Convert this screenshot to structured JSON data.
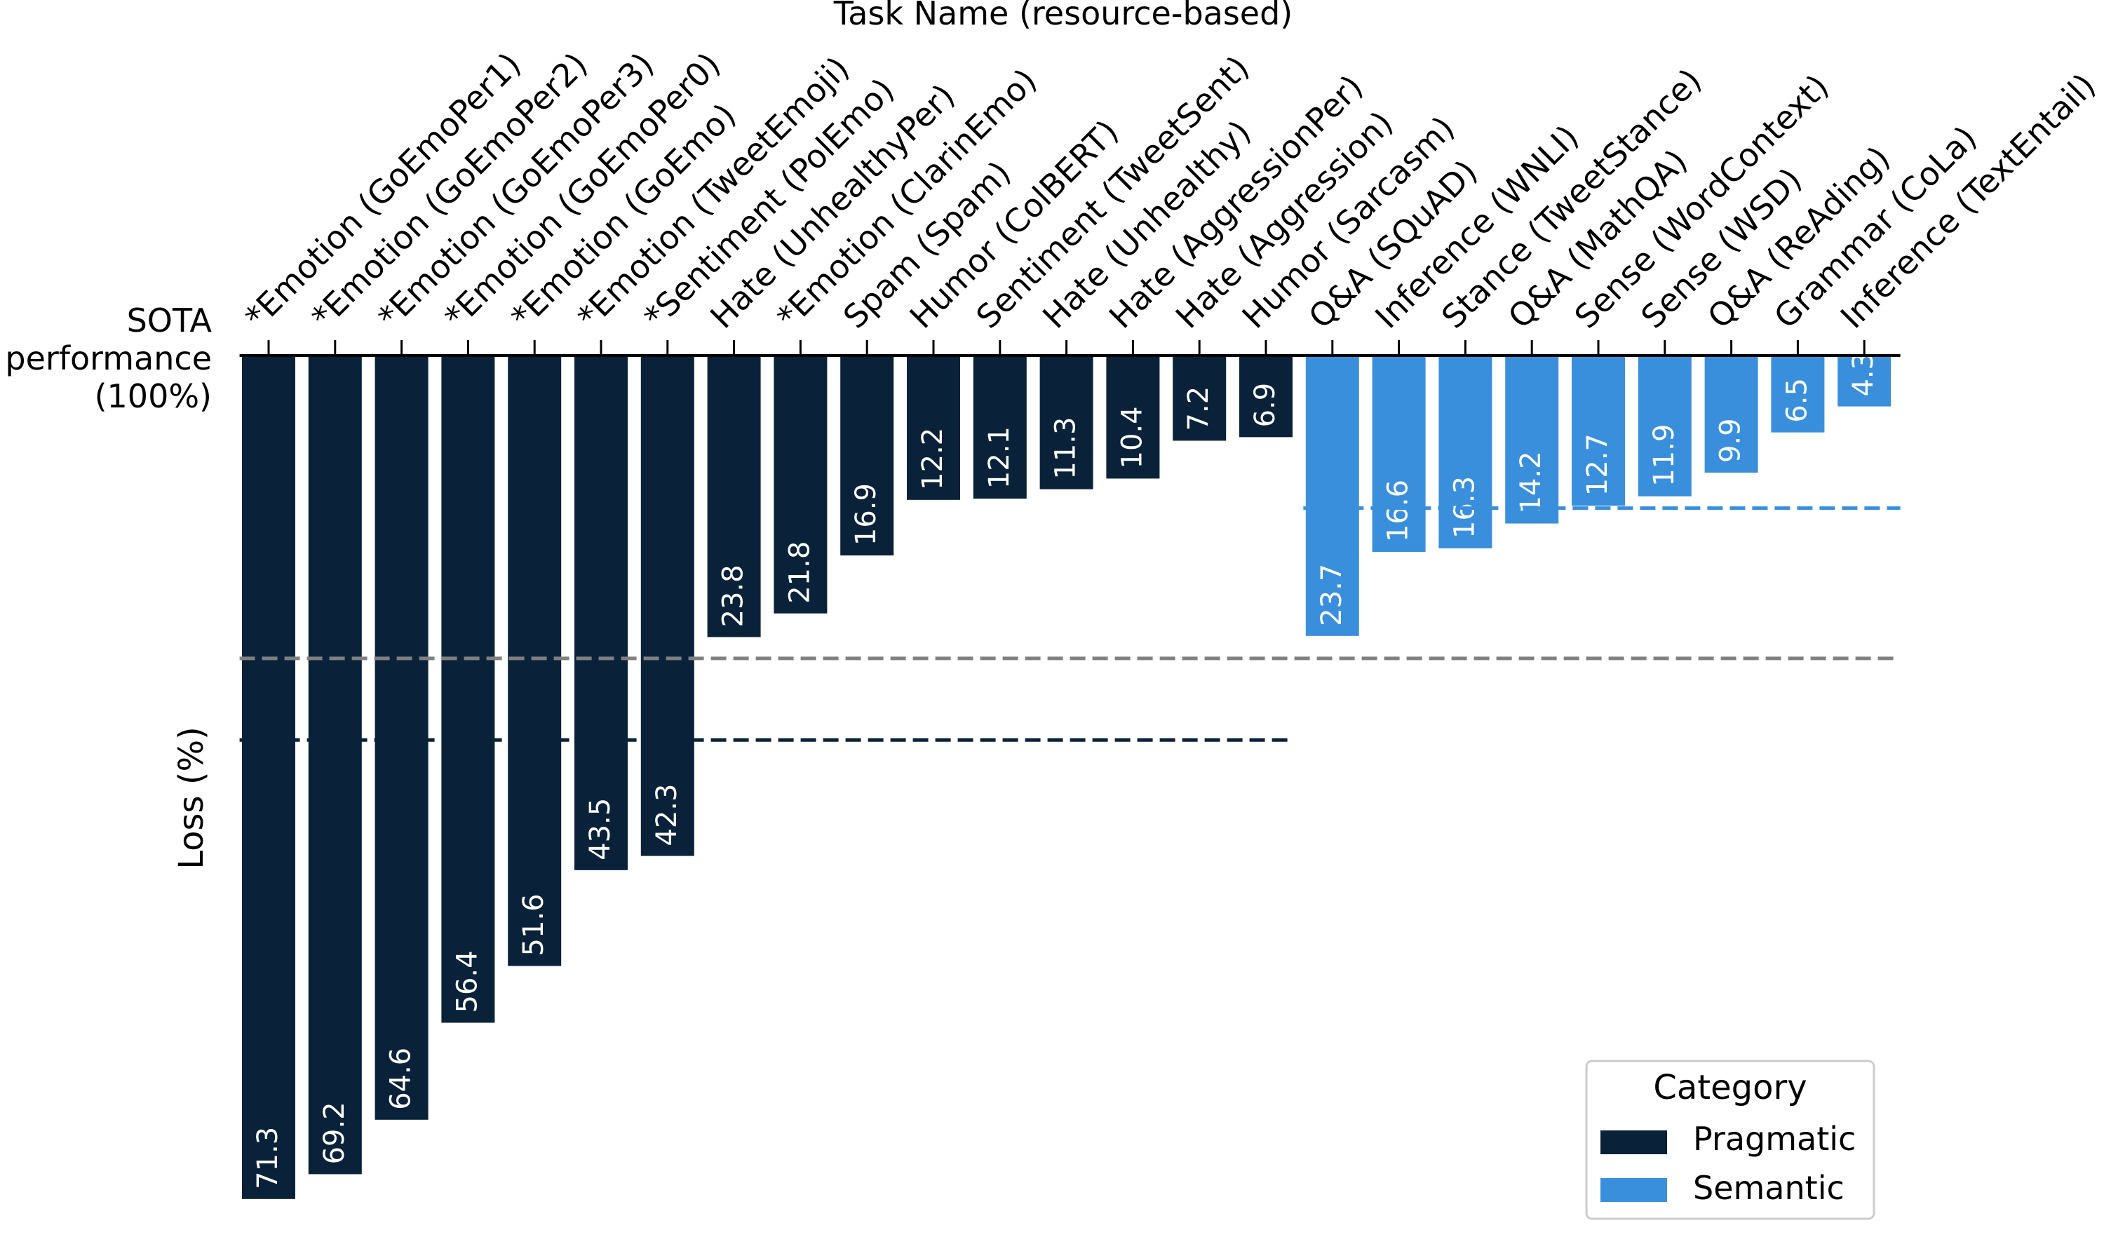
{
  "chart_data": {
    "type": "bar",
    "title": "Task Name (resource-based)",
    "ylabel": "Loss (%)",
    "baseline_label": [
      "SOTA",
      "performance",
      "(100%)"
    ],
    "ylim": [
      0,
      72
    ],
    "inverted": true,
    "categories": [
      "*Emotion (GoEmoPer1)",
      "*Emotion (GoEmoPer2)",
      "*Emotion (GoEmoPer3)",
      "*Emotion (GoEmoPer0)",
      "*Emotion (GoEmo)",
      "*Emotion (TweetEmoji)",
      "*Sentiment (PolEmo)",
      "Hate (UnhealthyPer)",
      "*Emotion (ClarinEmo)",
      "Spam (Spam)",
      "Humor (ColBERT)",
      "Sentiment (TweetSent)",
      "Hate (Unhealthy)",
      "Hate (AggressionPer)",
      "Hate (Aggression)",
      "Humor (Sarcasm)",
      "Q&A (SQuAD)",
      "Inference (WNLI)",
      "Stance (TweetStance)",
      "Q&A (MathQA)",
      "Sense (WordContext)",
      "Sense (WSD)",
      "Q&A (ReAding)",
      "Grammar (CoLa)",
      "Inference (TextEntail)"
    ],
    "values": [
      71.3,
      69.2,
      64.6,
      56.4,
      51.6,
      43.5,
      42.3,
      23.8,
      21.8,
      16.9,
      12.2,
      12.1,
      11.3,
      10.4,
      7.2,
      6.9,
      23.7,
      16.6,
      16.3,
      14.2,
      12.7,
      11.9,
      9.9,
      6.5,
      4.3
    ],
    "value_labels": [
      "71.3",
      "69.2",
      "64.6",
      "56.4",
      "51.6",
      "43.5",
      "42.3",
      "23.8",
      "21.8",
      "16.9",
      "12.2",
      "12.1",
      "11.3",
      "10.4",
      "7.2",
      "6.9",
      "23.7",
      "16.6",
      "16.3",
      "14.2",
      "12.7",
      "11.9",
      "9.9",
      "6.5",
      "4.3"
    ],
    "category_group": [
      "Pragmatic",
      "Pragmatic",
      "Pragmatic",
      "Pragmatic",
      "Pragmatic",
      "Pragmatic",
      "Pragmatic",
      "Pragmatic",
      "Pragmatic",
      "Pragmatic",
      "Pragmatic",
      "Pragmatic",
      "Pragmatic",
      "Pragmatic",
      "Pragmatic",
      "Pragmatic",
      "Semantic",
      "Semantic",
      "Semantic",
      "Semantic",
      "Semantic",
      "Semantic",
      "Semantic",
      "Semantic",
      "Semantic"
    ],
    "reference_lines": [
      {
        "group": "Pragmatic",
        "value": 32.5,
        "from_index": 0,
        "to_index": 15,
        "color": "#0a2239"
      },
      {
        "group": "Semantic",
        "value": 12.9,
        "from_index": 16,
        "to_index": 24,
        "color": "#3a8fdc"
      },
      {
        "group": "All",
        "value": 25.6,
        "from_index": 0,
        "to_index": 24,
        "color": "#808080"
      }
    ],
    "legend": {
      "title": "Category",
      "placement": "bottom-right",
      "items": [
        {
          "label": "Pragmatic",
          "color": "#0a2239"
        },
        {
          "label": "Semantic",
          "color": "#3a8fdc"
        }
      ]
    },
    "colors": {
      "Pragmatic": "#0a2239",
      "Semantic": "#3a8fdc"
    },
    "grid": false
  }
}
